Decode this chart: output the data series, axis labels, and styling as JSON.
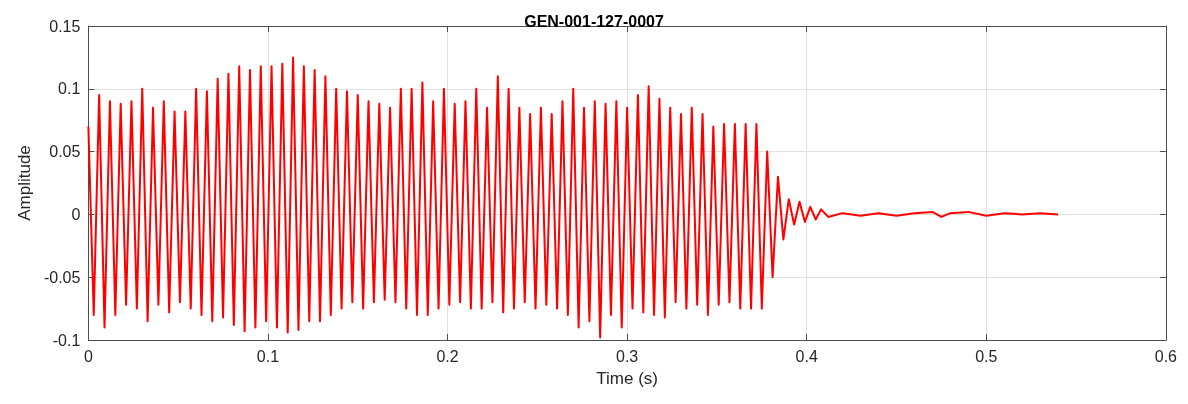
{
  "chart_data": {
    "type": "line",
    "title": "GEN-001-127-0007",
    "xlabel": "Time (s)",
    "ylabel": "Amplitude",
    "xlim": [
      0,
      0.6
    ],
    "xticks": [
      0,
      0.1,
      0.2,
      0.3,
      0.4,
      0.5,
      0.6
    ],
    "ylim": [
      -0.1,
      0.15
    ],
    "yticks": [
      -0.1,
      -0.05,
      0,
      0.05,
      0.1,
      0.15
    ],
    "grid": true,
    "marker": "none",
    "line_style": "solid",
    "x": [
      0,
      0.003,
      0.006,
      0.009,
      0.012,
      0.015,
      0.018,
      0.021,
      0.024,
      0.027,
      0.03,
      0.033,
      0.036,
      0.039,
      0.042,
      0.045,
      0.048,
      0.051,
      0.054,
      0.057,
      0.06,
      0.063,
      0.066,
      0.069,
      0.072,
      0.075,
      0.078,
      0.081,
      0.084,
      0.087,
      0.09,
      0.093,
      0.096,
      0.099,
      0.102,
      0.105,
      0.108,
      0.111,
      0.114,
      0.117,
      0.12,
      0.123,
      0.126,
      0.129,
      0.132,
      0.135,
      0.138,
      0.141,
      0.144,
      0.147,
      0.15,
      0.153,
      0.156,
      0.159,
      0.162,
      0.165,
      0.168,
      0.171,
      0.174,
      0.177,
      0.18,
      0.183,
      0.186,
      0.189,
      0.192,
      0.195,
      0.198,
      0.201,
      0.204,
      0.207,
      0.21,
      0.213,
      0.216,
      0.219,
      0.222,
      0.225,
      0.228,
      0.231,
      0.234,
      0.237,
      0.24,
      0.243,
      0.246,
      0.249,
      0.252,
      0.255,
      0.258,
      0.261,
      0.264,
      0.267,
      0.27,
      0.273,
      0.276,
      0.279,
      0.282,
      0.285,
      0.288,
      0.291,
      0.294,
      0.297,
      0.3,
      0.303,
      0.306,
      0.309,
      0.312,
      0.315,
      0.318,
      0.321,
      0.324,
      0.327,
      0.33,
      0.333,
      0.336,
      0.339,
      0.342,
      0.345,
      0.348,
      0.351,
      0.354,
      0.357,
      0.36,
      0.363,
      0.366,
      0.369,
      0.372,
      0.375,
      0.378,
      0.381,
      0.384,
      0.387,
      0.39,
      0.393,
      0.396,
      0.399,
      0.402,
      0.405,
      0.408,
      0.412,
      0.42,
      0.43,
      0.44,
      0.45,
      0.46,
      0.47,
      0.475,
      0.48,
      0.49,
      0.5,
      0.51,
      0.52,
      0.53,
      0.54
    ],
    "series": [
      {
        "color": "#ff0000",
        "values": [
          0.07,
          -0.08,
          0.095,
          -0.09,
          0.09,
          -0.08,
          0.088,
          -0.072,
          0.09,
          -0.075,
          0.1,
          -0.085,
          0.085,
          -0.072,
          0.09,
          -0.078,
          0.082,
          -0.07,
          0.082,
          -0.075,
          0.1,
          -0.08,
          0.098,
          -0.085,
          0.108,
          -0.082,
          0.112,
          -0.088,
          0.118,
          -0.093,
          0.115,
          -0.09,
          0.118,
          -0.085,
          0.118,
          -0.09,
          0.12,
          -0.094,
          0.125,
          -0.092,
          0.118,
          -0.085,
          0.115,
          -0.085,
          0.11,
          -0.08,
          0.1,
          -0.075,
          0.098,
          -0.07,
          0.095,
          -0.075,
          0.09,
          -0.07,
          0.088,
          -0.068,
          0.085,
          -0.07,
          0.1,
          -0.075,
          0.1,
          -0.08,
          0.105,
          -0.08,
          0.09,
          -0.075,
          0.1,
          -0.072,
          0.088,
          -0.07,
          0.09,
          -0.075,
          0.1,
          -0.075,
          0.085,
          -0.07,
          0.11,
          -0.078,
          0.1,
          -0.075,
          0.085,
          -0.07,
          0.08,
          -0.075,
          0.085,
          -0.072,
          0.08,
          -0.075,
          0.09,
          -0.08,
          0.1,
          -0.09,
          0.085,
          -0.085,
          0.09,
          -0.098,
          0.088,
          -0.08,
          0.09,
          -0.09,
          0.085,
          -0.075,
          0.095,
          -0.078,
          0.102,
          -0.08,
          0.092,
          -0.082,
          0.085,
          -0.07,
          0.08,
          -0.075,
          0.085,
          -0.072,
          0.08,
          -0.08,
          0.07,
          -0.072,
          0.072,
          -0.07,
          0.072,
          -0.075,
          0.072,
          -0.075,
          0.072,
          -0.075,
          0.05,
          -0.05,
          0.03,
          -0.02,
          0.012,
          -0.008,
          0.01,
          -0.006,
          0.006,
          -0.004,
          0.004,
          -0.002,
          0.001,
          -0.001,
          0.001,
          -0.001,
          0.001,
          0.002,
          -0.002,
          0.001,
          0.002,
          -0.001,
          0.001,
          0,
          0.001,
          0
        ]
      }
    ]
  }
}
